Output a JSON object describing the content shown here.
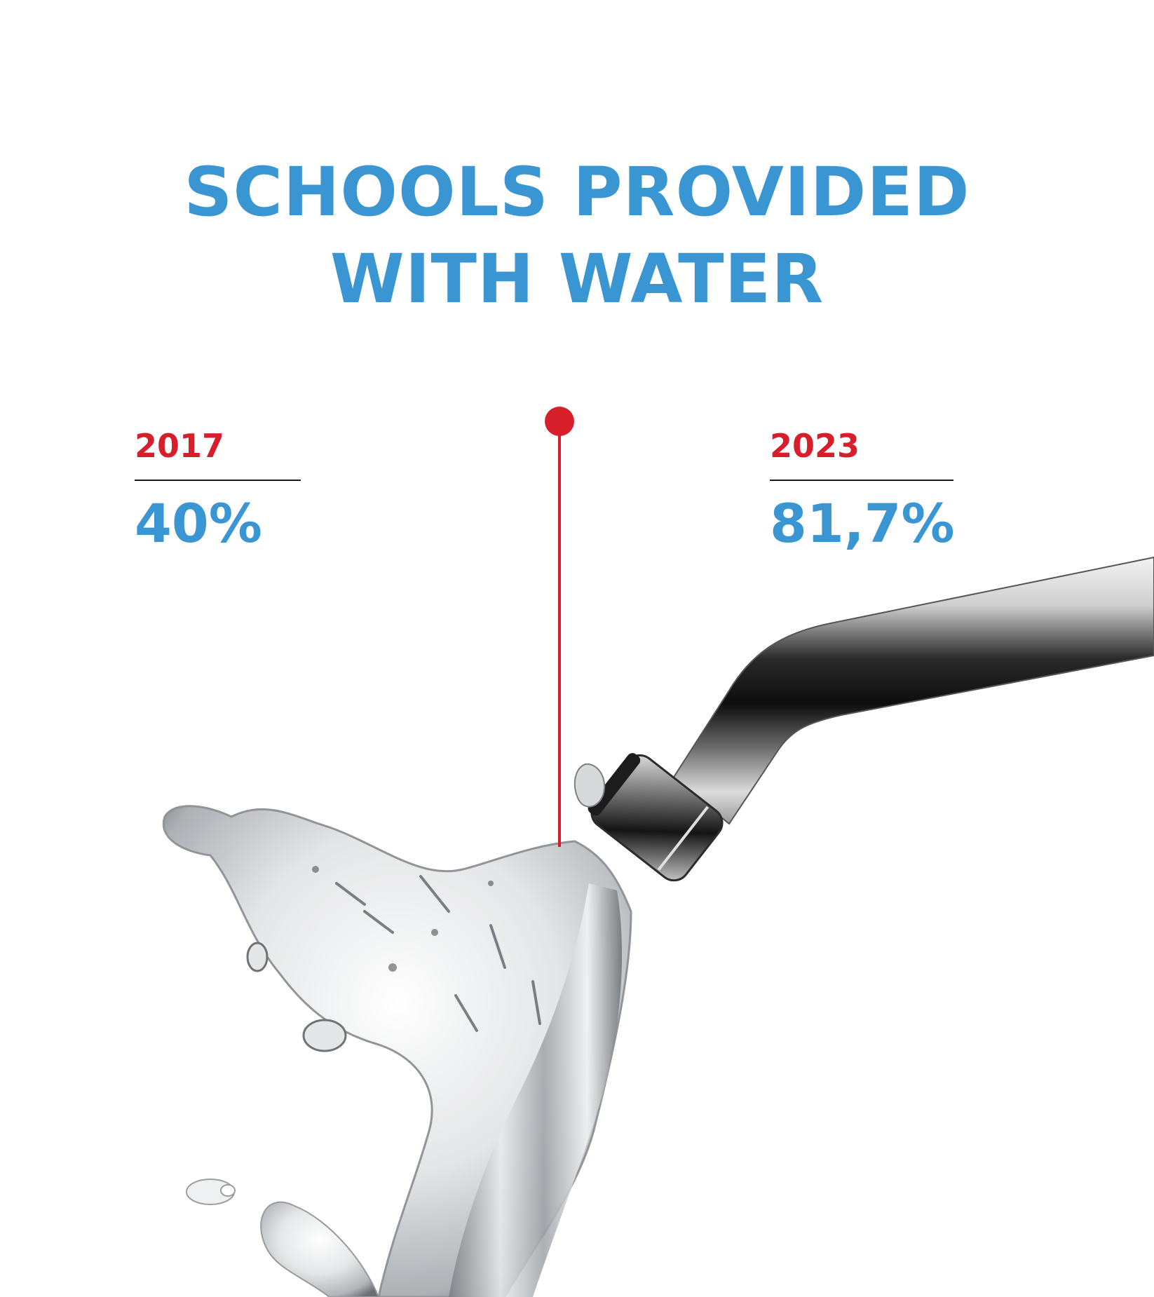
{
  "title": {
    "line1": "SCHOOLS PROVIDED",
    "line2": "WITH WATER"
  },
  "stats": [
    {
      "year": "2017",
      "value": "40%"
    },
    {
      "year": "2023",
      "value": "81,7%"
    }
  ],
  "colors": {
    "title": "#3a96d3",
    "year": "#d61f2a",
    "value": "#3a96d3",
    "pointer": "#d61f2a",
    "divider": "#1a1a1a"
  },
  "illustration": {
    "objects": [
      "faucet",
      "water-stream"
    ]
  }
}
